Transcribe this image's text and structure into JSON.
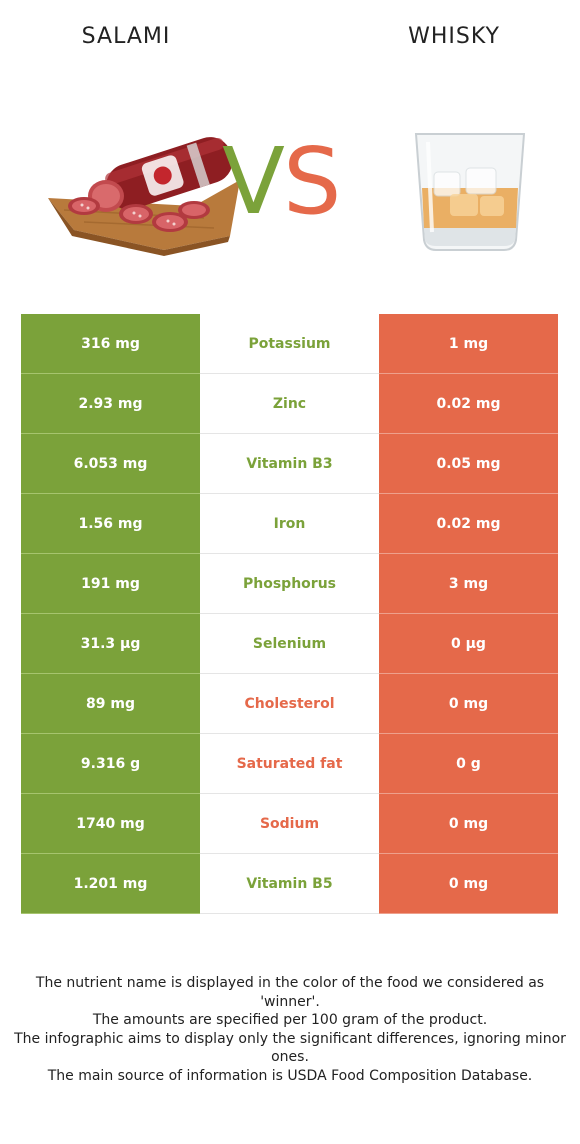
{
  "header": {
    "left_food": "SALAMI",
    "right_food": "WHISKY",
    "vs_v": "V",
    "vs_s": "S"
  },
  "colors": {
    "left_winner": "#7ba23a",
    "right_winner": "#e5694a"
  },
  "images": {
    "left": "salami-image",
    "right": "whisky-glass-image"
  },
  "rows": [
    {
      "left": "316 mg",
      "nutrient": "Potassium",
      "right": "1 mg",
      "winner": "left"
    },
    {
      "left": "2.93 mg",
      "nutrient": "Zinc",
      "right": "0.02 mg",
      "winner": "left"
    },
    {
      "left": "6.053 mg",
      "nutrient": "Vitamin B3",
      "right": "0.05 mg",
      "winner": "left"
    },
    {
      "left": "1.56 mg",
      "nutrient": "Iron",
      "right": "0.02 mg",
      "winner": "left"
    },
    {
      "left": "191 mg",
      "nutrient": "Phosphorus",
      "right": "3 mg",
      "winner": "left"
    },
    {
      "left": "31.3 µg",
      "nutrient": "Selenium",
      "right": "0 µg",
      "winner": "left"
    },
    {
      "left": "89 mg",
      "nutrient": "Cholesterol",
      "right": "0 mg",
      "winner": "right"
    },
    {
      "left": "9.316 g",
      "nutrient": "Saturated fat",
      "right": "0 g",
      "winner": "right"
    },
    {
      "left": "1740 mg",
      "nutrient": "Sodium",
      "right": "0 mg",
      "winner": "right"
    },
    {
      "left": "1.201 mg",
      "nutrient": "Vitamin B5",
      "right": "0 mg",
      "winner": "left"
    }
  ],
  "footer": {
    "line1": "The nutrient name is displayed in the color of the food we considered as 'winner'.",
    "line2": "The amounts are specified per 100 gram of the product.",
    "line3": "The infographic aims to display only the significant differences, ignoring minor ones.",
    "line4": "The main source of information is USDA Food Composition Database."
  }
}
